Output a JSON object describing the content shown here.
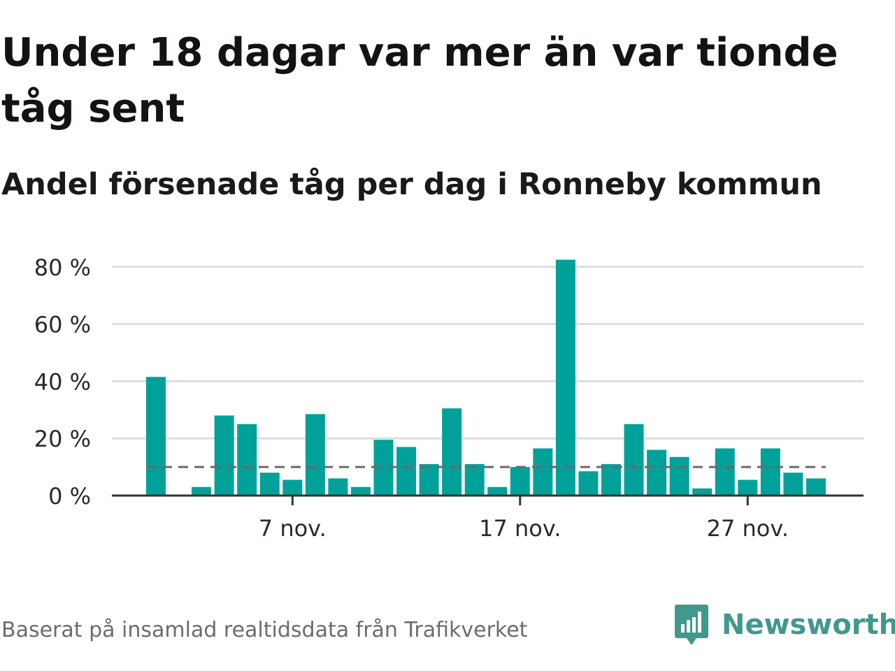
{
  "title": "Under 18 dagar var mer än var tionde tåg sent",
  "subtitle": "Andel försenade tåg per dag i Ronneby kommun",
  "footer": {
    "source": "Baserat på insamlad realtidsdata från Trafikverket",
    "brand": "Newsworthy",
    "brand_icon": "bar-chart-speech-bubble-icon"
  },
  "colors": {
    "bar": "#00a199",
    "reference_line": "#6a6a6a",
    "grid": "#dddddd",
    "axis": "#333333",
    "brand": "#40998c"
  },
  "chart_data": {
    "type": "bar",
    "title": "Under 18 dagar var mer än var tionde tåg sent",
    "subtitle": "Andel försenade tåg per dag i Ronneby kommun",
    "x": [
      "2019-11-01",
      "2019-11-02",
      "2019-11-03",
      "2019-11-04",
      "2019-11-05",
      "2019-11-06",
      "2019-11-07",
      "2019-11-08",
      "2019-11-09",
      "2019-11-10",
      "2019-11-11",
      "2019-11-12",
      "2019-11-13",
      "2019-11-14",
      "2019-11-15",
      "2019-11-16",
      "2019-11-17",
      "2019-11-18",
      "2019-11-19",
      "2019-11-20",
      "2019-11-21",
      "2019-11-22",
      "2019-11-23",
      "2019-11-24",
      "2019-11-25",
      "2019-11-26",
      "2019-11-27",
      "2019-11-28",
      "2019-11-29",
      "2019-11-30"
    ],
    "values": [
      41.5,
      0,
      3,
      28,
      25,
      8,
      5.5,
      28.5,
      6,
      3,
      19.5,
      17,
      11,
      30.5,
      11,
      3,
      10,
      16.5,
      82.5,
      8.5,
      11,
      25,
      16,
      13.5,
      2.5,
      16.5,
      5.5,
      16.5,
      8,
      6
    ],
    "unit": "%",
    "reference_line": {
      "value": 10
    },
    "yticks": [
      0,
      20,
      40,
      60,
      80
    ],
    "ytick_labels": [
      "0 %",
      "20 %",
      "40 %",
      "60 %",
      "80 %"
    ],
    "xticks": [
      "2019-11-07",
      "2019-11-17",
      "2019-11-27"
    ],
    "xtick_labels": [
      "7 nov.",
      "17 nov.",
      "27 nov."
    ],
    "ylim": [
      0,
      82.5
    ],
    "grid": true
  }
}
